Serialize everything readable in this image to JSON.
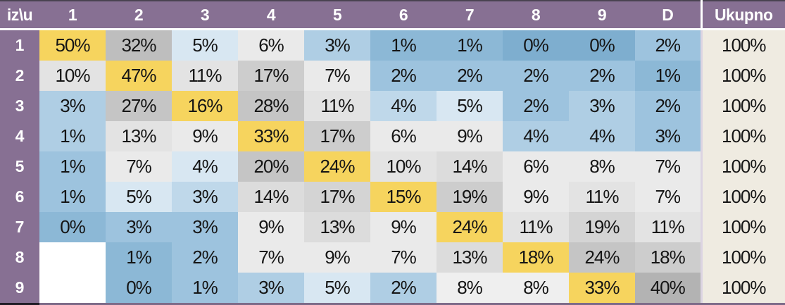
{
  "table": {
    "corner_label": "iz\\u",
    "col_headers": [
      "1",
      "2",
      "3",
      "4",
      "5",
      "6",
      "7",
      "8",
      "9",
      "D"
    ],
    "total_header": "Ukupno",
    "rows": [
      {
        "label": "1",
        "total": "100%",
        "cells": [
          {
            "v": "50%",
            "c": "y"
          },
          {
            "v": "32%",
            "c": "g7"
          },
          {
            "v": "5%",
            "c": "b5"
          },
          {
            "v": "6%",
            "c": "g1"
          },
          {
            "v": "3%",
            "c": "b3"
          },
          {
            "v": "1%",
            "c": "b1"
          },
          {
            "v": "1%",
            "c": "b1"
          },
          {
            "v": "0%",
            "c": "b0"
          },
          {
            "v": "0%",
            "c": "b0"
          },
          {
            "v": "2%",
            "c": "b2"
          }
        ]
      },
      {
        "label": "2",
        "total": "100%",
        "cells": [
          {
            "v": "10%",
            "c": "g2"
          },
          {
            "v": "47%",
            "c": "y"
          },
          {
            "v": "11%",
            "c": "g2"
          },
          {
            "v": "17%",
            "c": "g5"
          },
          {
            "v": "7%",
            "c": "g1"
          },
          {
            "v": "2%",
            "c": "b2"
          },
          {
            "v": "2%",
            "c": "b2"
          },
          {
            "v": "2%",
            "c": "b2"
          },
          {
            "v": "2%",
            "c": "b2"
          },
          {
            "v": "1%",
            "c": "b1"
          }
        ]
      },
      {
        "label": "3",
        "total": "100%",
        "cells": [
          {
            "v": "3%",
            "c": "b3"
          },
          {
            "v": "27%",
            "c": "g6"
          },
          {
            "v": "16%",
            "c": "y"
          },
          {
            "v": "28%",
            "c": "g6"
          },
          {
            "v": "11%",
            "c": "g2"
          },
          {
            "v": "4%",
            "c": "b4"
          },
          {
            "v": "5%",
            "c": "b5"
          },
          {
            "v": "2%",
            "c": "b2"
          },
          {
            "v": "3%",
            "c": "b3"
          },
          {
            "v": "2%",
            "c": "b2"
          }
        ]
      },
      {
        "label": "4",
        "total": "100%",
        "cells": [
          {
            "v": "1%",
            "c": "b3"
          },
          {
            "v": "13%",
            "c": "g2"
          },
          {
            "v": "9%",
            "c": "g1"
          },
          {
            "v": "33%",
            "c": "y"
          },
          {
            "v": "17%",
            "c": "g5"
          },
          {
            "v": "6%",
            "c": "g1"
          },
          {
            "v": "9%",
            "c": "g1"
          },
          {
            "v": "4%",
            "c": "b3"
          },
          {
            "v": "4%",
            "c": "b3"
          },
          {
            "v": "3%",
            "c": "b2"
          }
        ]
      },
      {
        "label": "5",
        "total": "100%",
        "cells": [
          {
            "v": "1%",
            "c": "b2"
          },
          {
            "v": "7%",
            "c": "g1"
          },
          {
            "v": "4%",
            "c": "b5"
          },
          {
            "v": "20%",
            "c": "g6"
          },
          {
            "v": "24%",
            "c": "y"
          },
          {
            "v": "10%",
            "c": "g2"
          },
          {
            "v": "14%",
            "c": "g3"
          },
          {
            "v": "6%",
            "c": "g1"
          },
          {
            "v": "8%",
            "c": "g1"
          },
          {
            "v": "7%",
            "c": "g1"
          }
        ]
      },
      {
        "label": "6",
        "total": "100%",
        "cells": [
          {
            "v": "1%",
            "c": "b2"
          },
          {
            "v": "5%",
            "c": "b5"
          },
          {
            "v": "3%",
            "c": "b4"
          },
          {
            "v": "14%",
            "c": "g3"
          },
          {
            "v": "17%",
            "c": "g4"
          },
          {
            "v": "15%",
            "c": "y"
          },
          {
            "v": "19%",
            "c": "g5"
          },
          {
            "v": "9%",
            "c": "g1"
          },
          {
            "v": "11%",
            "c": "g2"
          },
          {
            "v": "7%",
            "c": "g1"
          }
        ]
      },
      {
        "label": "7",
        "total": "100%",
        "cells": [
          {
            "v": "0%",
            "c": "b1"
          },
          {
            "v": "3%",
            "c": "b2"
          },
          {
            "v": "3%",
            "c": "b2"
          },
          {
            "v": "9%",
            "c": "g1"
          },
          {
            "v": "13%",
            "c": "g3"
          },
          {
            "v": "9%",
            "c": "g1"
          },
          {
            "v": "24%",
            "c": "y"
          },
          {
            "v": "11%",
            "c": "g2"
          },
          {
            "v": "19%",
            "c": "g4"
          },
          {
            "v": "11%",
            "c": "g2"
          }
        ]
      },
      {
        "label": "8",
        "total": "100%",
        "cells": [
          {
            "v": "",
            "c": "w"
          },
          {
            "v": "1%",
            "c": "b1"
          },
          {
            "v": "2%",
            "c": "b2"
          },
          {
            "v": "7%",
            "c": "g1"
          },
          {
            "v": "9%",
            "c": "g1"
          },
          {
            "v": "7%",
            "c": "g1"
          },
          {
            "v": "13%",
            "c": "g3"
          },
          {
            "v": "18%",
            "c": "y"
          },
          {
            "v": "24%",
            "c": "g6"
          },
          {
            "v": "18%",
            "c": "g5"
          }
        ]
      },
      {
        "label": "9",
        "total": "100%",
        "cells": [
          {
            "v": "",
            "c": "w"
          },
          {
            "v": "0%",
            "c": "b1"
          },
          {
            "v": "1%",
            "c": "b2"
          },
          {
            "v": "3%",
            "c": "b3"
          },
          {
            "v": "5%",
            "c": "b5"
          },
          {
            "v": "2%",
            "c": "b3"
          },
          {
            "v": "8%",
            "c": "g0"
          },
          {
            "v": "8%",
            "c": "g0"
          },
          {
            "v": "33%",
            "c": "y"
          },
          {
            "v": "40%",
            "c": "g8"
          }
        ]
      }
    ]
  },
  "palette": {
    "y": "#F6D45E",
    "b0": "#7EAECF",
    "b1": "#8CB8D6",
    "b2": "#9DC3DE",
    "b3": "#AFCEE4",
    "b4": "#BFD8EA",
    "b5": "#D8E7F2",
    "g0": "#EFEFEF",
    "g1": "#EAEAEA",
    "g2": "#E3E3E3",
    "g3": "#DCDCDC",
    "g4": "#D4D4D4",
    "g5": "#CDCDCD",
    "g6": "#C5C5C5",
    "g7": "#BEBEBE",
    "g8": "#B3B3B3",
    "w": "#FFFFFF"
  },
  "colors": {
    "header_bg": "#877093",
    "header_text": "#FFFFFF",
    "body_text": "#151515",
    "total_bg": "#EFEBE1",
    "top_border": "#4A4351",
    "separator": "#FFFFFF",
    "total_separator": "#DCD4E2",
    "bottom_border": "#7D6B89",
    "bottom_border_label": "#201C26",
    "diagonal_highlight": "#F6D45E"
  },
  "chart_data": {
    "type": "heatmap",
    "corner_label": "iz\\u",
    "x_labels": [
      "1",
      "2",
      "3",
      "4",
      "5",
      "6",
      "7",
      "8",
      "9",
      "D"
    ],
    "y_labels": [
      "1",
      "2",
      "3",
      "4",
      "5",
      "6",
      "7",
      "8",
      "9"
    ],
    "unit": "%",
    "values": [
      [
        50,
        32,
        5,
        6,
        3,
        1,
        1,
        0,
        0,
        2
      ],
      [
        10,
        47,
        11,
        17,
        7,
        2,
        2,
        2,
        2,
        1
      ],
      [
        3,
        27,
        16,
        28,
        11,
        4,
        5,
        2,
        3,
        2
      ],
      [
        1,
        13,
        9,
        33,
        17,
        6,
        9,
        4,
        4,
        3
      ],
      [
        1,
        7,
        4,
        20,
        24,
        10,
        14,
        6,
        8,
        7
      ],
      [
        1,
        5,
        3,
        14,
        17,
        15,
        19,
        9,
        11,
        7
      ],
      [
        0,
        3,
        3,
        9,
        13,
        9,
        24,
        11,
        19,
        11
      ],
      [
        null,
        1,
        2,
        7,
        9,
        7,
        13,
        18,
        24,
        18
      ],
      [
        null,
        0,
        1,
        3,
        5,
        2,
        8,
        8,
        33,
        40
      ]
    ],
    "total_label": "Ukupno",
    "totals": [
      100,
      100,
      100,
      100,
      100,
      100,
      100,
      100,
      100
    ],
    "legend": "none",
    "color_coding": "blue = low values, gray = high values, yellow = diagonal cells"
  }
}
